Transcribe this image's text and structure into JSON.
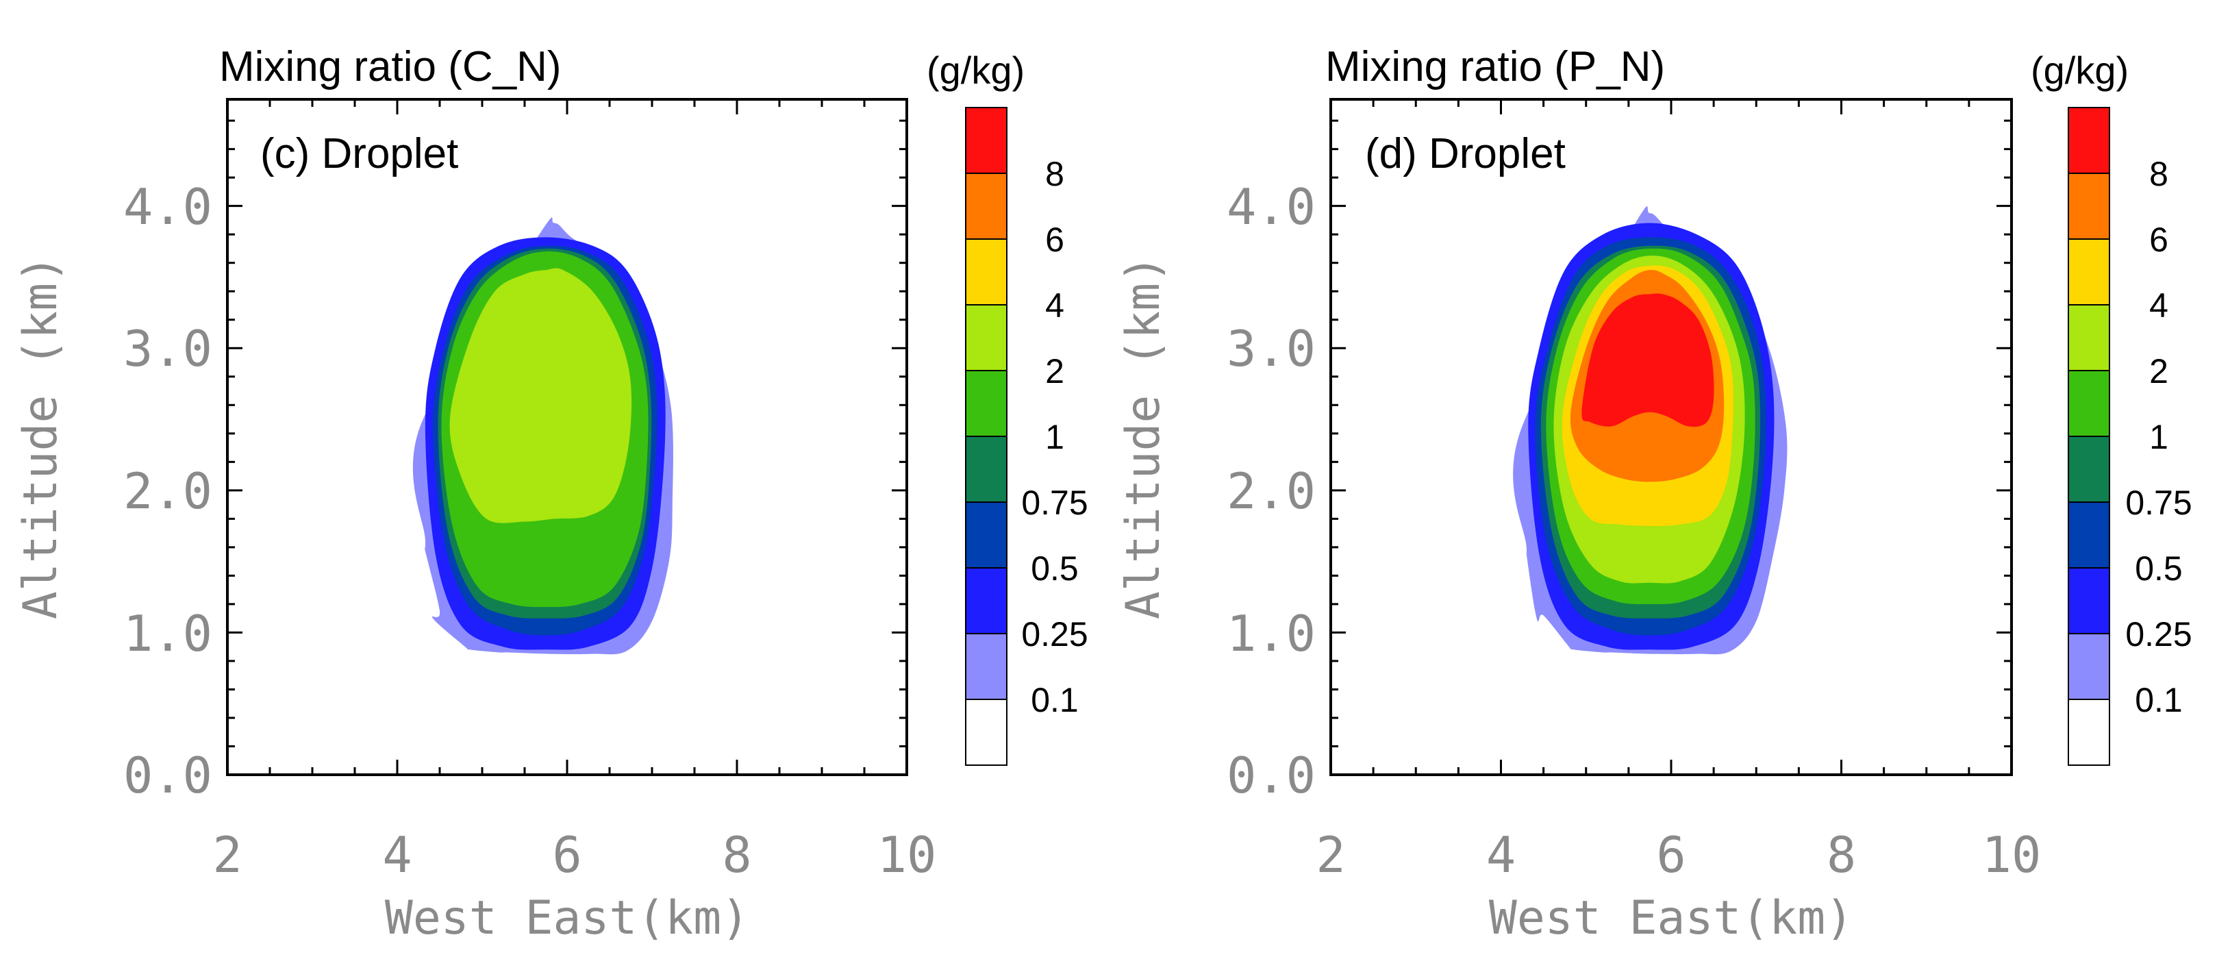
{
  "chart_data": [
    {
      "type": "contour",
      "title": "Mixing ratio (C_N)",
      "inner_label": "(c) Droplet",
      "units_label": "(g/kg)",
      "xlabel": "West East(km)",
      "ylabel": "Altitude (km)",
      "xlim": [
        2,
        10
      ],
      "ylim": [
        0,
        4.75
      ],
      "xticks": [
        "2",
        "4",
        "6",
        "8",
        "10"
      ],
      "yticks": [
        "0.0",
        "1.0",
        "2.0",
        "3.0",
        "4.0"
      ],
      "colorbar": {
        "levels": [
          "0.1",
          "0.25",
          "0.5",
          "0.75",
          "1",
          "2",
          "4",
          "6",
          "8"
        ],
        "colors": [
          "#ffffff",
          "#8c8cff",
          "#1e1eff",
          "#0040b0",
          "#108050",
          "#3cc010",
          "#aae610",
          "#ffd700",
          "#ff7800",
          "#ff1010"
        ]
      },
      "contours": [
        {
          "level": "0.1",
          "color": "#8c8cff",
          "x": [
            4.27,
            4.33,
            4.5,
            4.85,
            5.3,
            5.65,
            5.85,
            6.05,
            6.5,
            6.95,
            7.22,
            7.24,
            7.2,
            7.0,
            6.7,
            6.3,
            5.8,
            5.2,
            4.8,
            4.42,
            4.32
          ],
          "y": [
            2.45,
            1.65,
            1.15,
            0.88,
            0.86,
            3.78,
            3.88,
            3.78,
            3.58,
            3.15,
            2.6,
            1.9,
            1.5,
            1.08,
            0.87,
            0.85,
            0.85,
            0.86,
            0.9,
            1.1,
            1.6
          ]
        },
        {
          "level": "0.25",
          "color": "#1e1eff",
          "x": [
            4.33,
            4.45,
            4.75,
            5.25,
            5.75,
            6.25,
            6.75,
            7.0,
            7.13,
            7.15,
            7.02,
            6.7,
            6.3,
            5.75,
            5.2,
            4.75,
            4.45
          ],
          "y": [
            2.45,
            1.55,
            1.05,
            0.9,
            0.88,
            0.9,
            1.05,
            1.45,
            2.1,
            2.7,
            3.15,
            3.55,
            3.72,
            3.78,
            3.72,
            3.5,
            3.0
          ]
        },
        {
          "level": "0.5",
          "color": "#0040b0",
          "x": [
            4.42,
            4.55,
            4.85,
            5.3,
            5.75,
            6.2,
            6.65,
            6.92,
            7.04,
            7.05,
            6.92,
            6.6,
            6.2,
            5.75,
            5.3,
            4.85,
            4.55
          ],
          "y": [
            2.45,
            1.65,
            1.18,
            1.02,
            0.98,
            1.02,
            1.18,
            1.6,
            2.2,
            2.7,
            3.12,
            3.52,
            3.68,
            3.72,
            3.66,
            3.45,
            3.0
          ]
        },
        {
          "level": "0.75",
          "color": "#108050",
          "x": [
            4.48,
            4.6,
            4.9,
            5.3,
            5.75,
            6.2,
            6.6,
            6.88,
            6.98,
            6.98,
            6.85,
            6.55,
            6.2,
            5.75,
            5.3,
            4.9,
            4.6
          ],
          "y": [
            2.45,
            1.7,
            1.25,
            1.12,
            1.1,
            1.12,
            1.25,
            1.65,
            2.2,
            2.7,
            3.1,
            3.48,
            3.65,
            3.7,
            3.63,
            3.42,
            3.0
          ]
        },
        {
          "level": "1",
          "color": "#3cc010",
          "x": [
            4.52,
            4.65,
            4.95,
            5.35,
            5.75,
            6.15,
            6.55,
            6.84,
            6.94,
            6.94,
            6.8,
            6.5,
            6.15,
            5.75,
            5.35,
            4.95,
            4.65
          ],
          "y": [
            2.45,
            1.75,
            1.32,
            1.2,
            1.18,
            1.2,
            1.32,
            1.7,
            2.2,
            2.7,
            3.08,
            3.46,
            3.63,
            3.68,
            3.61,
            3.4,
            3.0
          ]
        },
        {
          "level": "2",
          "color": "#aae610",
          "x": [
            4.62,
            4.75,
            5.05,
            5.5,
            5.85,
            6.25,
            6.55,
            6.72,
            6.75,
            6.6,
            6.3,
            5.95,
            5.75,
            5.5,
            5.15,
            4.85
          ],
          "y": [
            2.5,
            2.1,
            1.8,
            1.78,
            1.8,
            1.82,
            1.95,
            2.3,
            2.75,
            3.1,
            3.4,
            3.55,
            3.55,
            3.52,
            3.4,
            3.05
          ]
        }
      ]
    },
    {
      "type": "contour",
      "title": "Mixing ratio (P_N)",
      "inner_label": "(d) Droplet",
      "units_label": "(g/kg)",
      "xlabel": "West East(km)",
      "ylabel": "Altitude (km)",
      "xlim": [
        2,
        10
      ],
      "ylim": [
        0,
        4.75
      ],
      "xticks": [
        "2",
        "4",
        "6",
        "8",
        "10"
      ],
      "yticks": [
        "0.0",
        "1.0",
        "2.0",
        "3.0",
        "4.0"
      ],
      "colorbar": {
        "levels": [
          "0.1",
          "0.25",
          "0.5",
          "0.75",
          "1",
          "2",
          "4",
          "6",
          "8"
        ],
        "colors": [
          "#ffffff",
          "#8c8cff",
          "#1e1eff",
          "#0040b0",
          "#108050",
          "#3cc010",
          "#aae610",
          "#ffd700",
          "#ff7800",
          "#ff1010"
        ]
      },
      "contours": [
        {
          "level": "0.1",
          "color": "#8c8cff",
          "x": [
            4.22,
            4.3,
            4.5,
            4.85,
            5.3,
            5.55,
            5.75,
            5.95,
            6.25,
            6.8,
            7.15,
            7.35,
            7.33,
            7.2,
            7.0,
            6.7,
            6.3,
            5.75,
            5.2,
            4.8,
            4.42,
            4.3
          ],
          "y": [
            2.4,
            1.6,
            1.12,
            0.88,
            0.86,
            3.85,
            3.95,
            3.85,
            3.75,
            3.45,
            3.0,
            2.45,
            2.0,
            1.55,
            1.08,
            0.87,
            0.85,
            0.85,
            0.86,
            0.9,
            1.1,
            1.55
          ]
        },
        {
          "level": "0.25",
          "color": "#1e1eff",
          "x": [
            4.32,
            4.45,
            4.75,
            5.25,
            5.75,
            6.25,
            6.75,
            7.02,
            7.18,
            7.2,
            7.05,
            6.75,
            6.3,
            5.75,
            5.2,
            4.75,
            4.45
          ],
          "y": [
            2.45,
            1.55,
            1.05,
            0.9,
            0.88,
            0.9,
            1.05,
            1.45,
            2.1,
            2.7,
            3.2,
            3.6,
            3.8,
            3.88,
            3.8,
            3.55,
            3.0
          ]
        },
        {
          "level": "0.5",
          "color": "#0040b0",
          "x": [
            4.4,
            4.53,
            4.85,
            5.3,
            5.75,
            6.2,
            6.65,
            6.95,
            7.1,
            7.1,
            6.95,
            6.65,
            6.25,
            5.75,
            5.25,
            4.85,
            4.55
          ],
          "y": [
            2.45,
            1.65,
            1.18,
            1.02,
            0.98,
            1.02,
            1.18,
            1.6,
            2.2,
            2.75,
            3.2,
            3.55,
            3.73,
            3.78,
            3.72,
            3.5,
            3.0
          ]
        },
        {
          "level": "0.75",
          "color": "#108050",
          "x": [
            4.47,
            4.6,
            4.9,
            5.3,
            5.75,
            6.2,
            6.6,
            6.9,
            7.03,
            7.03,
            6.88,
            6.6,
            6.2,
            5.75,
            5.3,
            4.9,
            4.6
          ],
          "y": [
            2.45,
            1.7,
            1.25,
            1.12,
            1.1,
            1.12,
            1.25,
            1.65,
            2.2,
            2.75,
            3.15,
            3.5,
            3.68,
            3.72,
            3.66,
            3.45,
            3.0
          ]
        },
        {
          "level": "1",
          "color": "#3cc010",
          "x": [
            4.53,
            4.66,
            4.95,
            5.35,
            5.75,
            6.15,
            6.55,
            6.84,
            6.97,
            6.97,
            6.82,
            6.55,
            6.15,
            5.75,
            5.35,
            4.95,
            4.66
          ],
          "y": [
            2.45,
            1.75,
            1.35,
            1.22,
            1.2,
            1.22,
            1.35,
            1.7,
            2.2,
            2.75,
            3.12,
            3.47,
            3.66,
            3.7,
            3.64,
            3.42,
            3.0
          ]
        },
        {
          "level": "2",
          "color": "#aae610",
          "x": [
            4.62,
            4.75,
            5.05,
            5.4,
            5.75,
            6.1,
            6.45,
            6.72,
            6.85,
            6.85,
            6.72,
            6.45,
            6.1,
            5.75,
            5.4,
            5.05,
            4.75
          ],
          "y": [
            2.45,
            1.85,
            1.48,
            1.36,
            1.35,
            1.36,
            1.48,
            1.85,
            2.3,
            2.75,
            3.1,
            3.42,
            3.6,
            3.65,
            3.58,
            3.38,
            3.0
          ]
        },
        {
          "level": "4",
          "color": "#ffd700",
          "x": [
            4.72,
            4.82,
            5.05,
            5.4,
            5.75,
            6.1,
            6.45,
            6.65,
            6.72,
            6.72,
            6.6,
            6.35,
            6.05,
            5.75,
            5.45,
            5.15,
            4.9
          ],
          "y": [
            2.5,
            2.05,
            1.8,
            1.76,
            1.75,
            1.76,
            1.82,
            2.05,
            2.4,
            2.8,
            3.1,
            3.4,
            3.55,
            3.58,
            3.53,
            3.35,
            3.0
          ]
        },
        {
          "level": "6",
          "color": "#ff7800",
          "x": [
            4.82,
            4.9,
            5.15,
            5.45,
            5.75,
            6.05,
            6.35,
            6.55,
            6.62,
            6.58,
            6.42,
            6.15,
            5.92,
            5.75,
            5.55,
            5.25,
            5.0
          ],
          "y": [
            2.55,
            2.3,
            2.15,
            2.08,
            2.06,
            2.08,
            2.15,
            2.3,
            2.55,
            2.9,
            3.18,
            3.42,
            3.52,
            3.55,
            3.5,
            3.33,
            3.0
          ]
        },
        {
          "level": "8",
          "color": "#ff1010",
          "x": [
            4.95,
            5.05,
            5.3,
            5.55,
            5.75,
            5.95,
            6.2,
            6.42,
            6.5,
            6.47,
            6.32,
            6.1,
            5.9,
            5.75,
            5.55,
            5.3,
            5.08
          ],
          "y": [
            2.55,
            2.48,
            2.45,
            2.52,
            2.55,
            2.52,
            2.45,
            2.48,
            2.65,
            2.95,
            3.2,
            3.33,
            3.38,
            3.38,
            3.36,
            3.25,
            3.0
          ]
        }
      ]
    }
  ]
}
